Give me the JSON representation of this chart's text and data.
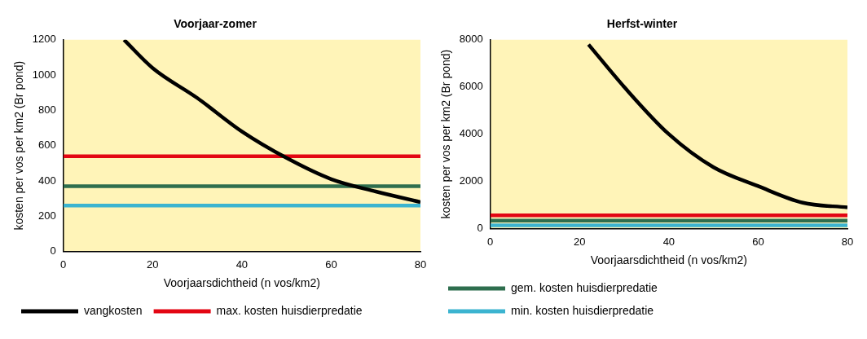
{
  "chart_data": [
    {
      "type": "line",
      "title": "Voorjaar-zomer",
      "xlabel": "Voorjaarsdichtheid (n vos/km2)",
      "ylabel": "kosten per vos per km2 (Br pond)",
      "xlim": [
        0,
        80
      ],
      "xticks": [
        0,
        20,
        40,
        60,
        80
      ],
      "ylim": [
        0,
        1200
      ],
      "yticks": [
        0,
        200,
        400,
        600,
        800,
        1000,
        1200
      ],
      "grid": false,
      "marker": "none",
      "legend": "bottom",
      "series": [
        {
          "name": "vangkosten",
          "color": "#000000",
          "x": [
            13.6,
            20,
            30,
            40,
            50,
            60,
            70,
            80
          ],
          "values": [
            1200,
            1040,
            870,
            680,
            530,
            410,
            340,
            280
          ]
        },
        {
          "name": "max. kosten huisdierpredatie",
          "color": "#e30613",
          "x": [
            0,
            80
          ],
          "values": [
            540,
            540
          ]
        },
        {
          "color": "#2e6e4e",
          "x": [
            0,
            80
          ],
          "values": [
            370,
            370
          ]
        },
        {
          "color": "#3cb4d0",
          "x": [
            0,
            80
          ],
          "values": [
            260,
            260
          ]
        }
      ]
    },
    {
      "type": "line",
      "title": "Herfst-winter",
      "xlabel": "Voorjaarsdichtheid (n vos/km2)",
      "ylabel": "kosten per vos per km2 (Br pond)",
      "xlim": [
        0,
        80
      ],
      "xticks": [
        0,
        20,
        40,
        60,
        80
      ],
      "ylim": [
        0,
        8000
      ],
      "yticks": [
        0,
        2000,
        4000,
        6000,
        8000
      ],
      "grid": false,
      "marker": "none",
      "legend": "bottom",
      "series": [
        {
          "color": "#000000",
          "x": [
            22,
            30,
            40,
            50,
            60,
            70,
            80
          ],
          "values": [
            7800,
            6000,
            4000,
            2600,
            1800,
            1100,
            900
          ]
        },
        {
          "color": "#e30613",
          "x": [
            0,
            80
          ],
          "values": [
            560,
            560
          ]
        },
        {
          "name": "gem. kosten huisdierpredatie",
          "color": "#2e6e4e",
          "x": [
            0,
            80
          ],
          "values": [
            340,
            340
          ]
        },
        {
          "name": "min. kosten huisdierpredatie",
          "color": "#3cb4d0",
          "x": [
            0,
            80
          ],
          "values": [
            140,
            140
          ]
        }
      ]
    }
  ]
}
